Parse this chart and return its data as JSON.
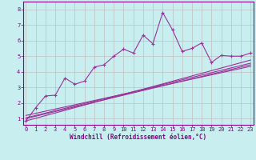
{
  "title": "",
  "xlabel": "Windchill (Refroidissement éolien,°C)",
  "ylabel": "",
  "bg_color": "#c8eef0",
  "grid_color": "#c0c0c0",
  "line_color": "#993399",
  "x_ticks": [
    0,
    1,
    2,
    3,
    4,
    5,
    6,
    7,
    8,
    9,
    10,
    11,
    12,
    13,
    14,
    15,
    16,
    17,
    18,
    19,
    20,
    21,
    22,
    23
  ],
  "y_ticks": [
    1,
    2,
    3,
    4,
    5,
    6,
    7,
    8
  ],
  "xlim": [
    -0.3,
    23.3
  ],
  "ylim": [
    0.6,
    8.5
  ],
  "scatter_x": [
    0,
    1,
    2,
    3,
    4,
    5,
    6,
    7,
    8,
    9,
    10,
    11,
    12,
    13,
    14,
    15,
    16,
    17,
    18,
    19,
    20,
    21,
    22,
    23
  ],
  "scatter_y": [
    0.85,
    1.7,
    2.45,
    2.5,
    3.6,
    3.2,
    3.4,
    4.3,
    4.45,
    5.0,
    5.45,
    5.2,
    6.35,
    5.8,
    7.8,
    6.7,
    5.3,
    5.5,
    5.85,
    4.6,
    5.05,
    5.0,
    5.0,
    5.2
  ],
  "reg_lines": [
    {
      "x": [
        0,
        23
      ],
      "y": [
        1.05,
        4.55
      ]
    },
    {
      "x": [
        0,
        23
      ],
      "y": [
        0.85,
        4.75
      ]
    },
    {
      "x": [
        0,
        23
      ],
      "y": [
        1.2,
        4.35
      ]
    },
    {
      "x": [
        0,
        23
      ],
      "y": [
        1.0,
        4.45
      ]
    }
  ],
  "tick_color": "#880088",
  "tick_fontsize": 5.0,
  "xlabel_fontsize": 5.5,
  "spine_color": "#880088"
}
